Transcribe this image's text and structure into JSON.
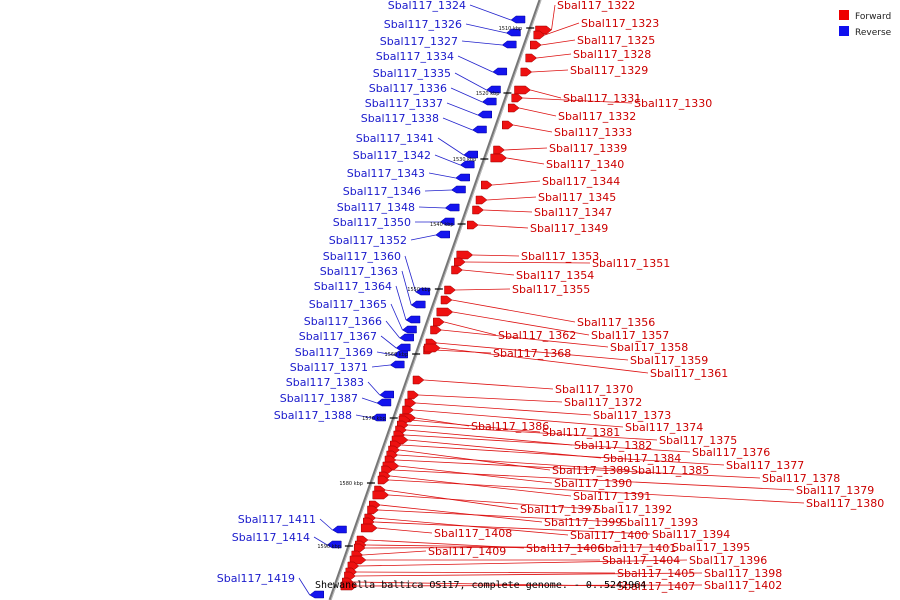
{
  "legend": [
    {
      "label": "Forward",
      "color": "#ee0000"
    },
    {
      "label": "Reverse",
      "color": "#1010ee"
    }
  ],
  "caption": "Shewanella baltica OS117, complete genome. - 0..5242964",
  "ticks": [
    "1510 kbp",
    "1520 kbp",
    "1530 kbp",
    "1540 kbp",
    "1550 kbp",
    "1560 kbp",
    "1570 kbp",
    "1580 kbp",
    "1590 kbp"
  ],
  "reverse_genes": [
    "Sbal117_1324",
    "Sbal117_1326",
    "Sbal117_1327",
    "Sbal117_1334",
    "Sbal117_1335",
    "Sbal117_1336",
    "Sbal117_1337",
    "Sbal117_1338",
    "Sbal117_1341",
    "Sbal117_1342",
    "Sbal117_1343",
    "Sbal117_1346",
    "Sbal117_1348",
    "Sbal117_1350",
    "Sbal117_1352",
    "Sbal117_1360",
    "Sbal117_1363",
    "Sbal117_1364",
    "Sbal117_1365",
    "Sbal117_1366",
    "Sbal117_1367",
    "Sbal117_1369",
    "Sbal117_1371",
    "Sbal117_1383",
    "Sbal117_1387",
    "Sbal117_1388",
    "Sbal117_1411",
    "Sbal117_1414",
    "Sbal117_1419"
  ],
  "forward_genes": [
    "Sbal117_1322",
    "Sbal117_1323",
    "Sbal117_1325",
    "Sbal117_1328",
    "Sbal117_1329",
    "Sbal117_1331",
    "Sbal117_1330",
    "Sbal117_1332",
    "Sbal117_1333",
    "Sbal117_1339",
    "Sbal117_1340",
    "Sbal117_1344",
    "Sbal117_1345",
    "Sbal117_1347",
    "Sbal117_1349",
    "Sbal117_1353",
    "Sbal117_1351",
    "Sbal117_1354",
    "Sbal117_1355",
    "Sbal117_1356",
    "Sbal117_1357",
    "Sbal117_1362",
    "Sbal117_1358",
    "Sbal117_1368",
    "Sbal117_1359",
    "Sbal117_1361",
    "Sbal117_1370",
    "Sbal117_1372",
    "Sbal117_1373",
    "Sbal117_1374",
    "Sbal117_1386",
    "Sbal117_1381",
    "Sbal117_1375",
    "Sbal117_1382",
    "Sbal117_1376",
    "Sbal117_1384",
    "Sbal117_1377",
    "Sbal117_1389",
    "Sbal117_1385",
    "Sbal117_1378",
    "Sbal117_1390",
    "Sbal117_1379",
    "Sbal117_1391",
    "Sbal117_1380",
    "Sbal117_1397",
    "Sbal117_1392",
    "Sbal117_1399",
    "Sbal117_1393",
    "Sbal117_1400",
    "Sbal117_1394",
    "Sbal117_1408",
    "Sbal117_1406",
    "Sbal117_1401",
    "Sbal117_1395",
    "Sbal117_1409",
    "Sbal117_1404",
    "Sbal117_1396",
    "Sbal117_1405",
    "Sbal117_1398",
    "Sbal117_1407",
    "Sbal117_1402"
  ]
}
